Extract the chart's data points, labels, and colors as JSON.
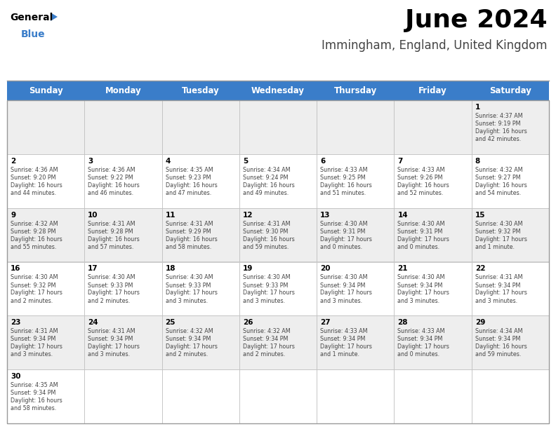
{
  "title": "June 2024",
  "subtitle": "Immingham, England, United Kingdom",
  "days_of_week": [
    "Sunday",
    "Monday",
    "Tuesday",
    "Wednesday",
    "Thursday",
    "Friday",
    "Saturday"
  ],
  "header_bg": "#3A7DC9",
  "header_text": "#FFFFFF",
  "bg_color": "#FFFFFF",
  "cell_border": "#BBBBBB",
  "day_number_color": "#000000",
  "text_color": "#444444",
  "title_color": "#000000",
  "subtitle_color": "#444444",
  "row_colors": [
    "#EEEEEE",
    "#FFFFFF"
  ],
  "calendar_data": [
    [
      {
        "day": null,
        "sunrise": null,
        "sunset": null,
        "daylight": null
      },
      {
        "day": null,
        "sunrise": null,
        "sunset": null,
        "daylight": null
      },
      {
        "day": null,
        "sunrise": null,
        "sunset": null,
        "daylight": null
      },
      {
        "day": null,
        "sunrise": null,
        "sunset": null,
        "daylight": null
      },
      {
        "day": null,
        "sunrise": null,
        "sunset": null,
        "daylight": null
      },
      {
        "day": null,
        "sunrise": null,
        "sunset": null,
        "daylight": null
      },
      {
        "day": 1,
        "sunrise": "4:37 AM",
        "sunset": "9:19 PM",
        "daylight": "16 hours\nand 42 minutes."
      }
    ],
    [
      {
        "day": 2,
        "sunrise": "4:36 AM",
        "sunset": "9:20 PM",
        "daylight": "16 hours\nand 44 minutes."
      },
      {
        "day": 3,
        "sunrise": "4:36 AM",
        "sunset": "9:22 PM",
        "daylight": "16 hours\nand 46 minutes."
      },
      {
        "day": 4,
        "sunrise": "4:35 AM",
        "sunset": "9:23 PM",
        "daylight": "16 hours\nand 47 minutes."
      },
      {
        "day": 5,
        "sunrise": "4:34 AM",
        "sunset": "9:24 PM",
        "daylight": "16 hours\nand 49 minutes."
      },
      {
        "day": 6,
        "sunrise": "4:33 AM",
        "sunset": "9:25 PM",
        "daylight": "16 hours\nand 51 minutes."
      },
      {
        "day": 7,
        "sunrise": "4:33 AM",
        "sunset": "9:26 PM",
        "daylight": "16 hours\nand 52 minutes."
      },
      {
        "day": 8,
        "sunrise": "4:32 AM",
        "sunset": "9:27 PM",
        "daylight": "16 hours\nand 54 minutes."
      }
    ],
    [
      {
        "day": 9,
        "sunrise": "4:32 AM",
        "sunset": "9:28 PM",
        "daylight": "16 hours\nand 55 minutes."
      },
      {
        "day": 10,
        "sunrise": "4:31 AM",
        "sunset": "9:28 PM",
        "daylight": "16 hours\nand 57 minutes."
      },
      {
        "day": 11,
        "sunrise": "4:31 AM",
        "sunset": "9:29 PM",
        "daylight": "16 hours\nand 58 minutes."
      },
      {
        "day": 12,
        "sunrise": "4:31 AM",
        "sunset": "9:30 PM",
        "daylight": "16 hours\nand 59 minutes."
      },
      {
        "day": 13,
        "sunrise": "4:30 AM",
        "sunset": "9:31 PM",
        "daylight": "17 hours\nand 0 minutes."
      },
      {
        "day": 14,
        "sunrise": "4:30 AM",
        "sunset": "9:31 PM",
        "daylight": "17 hours\nand 0 minutes."
      },
      {
        "day": 15,
        "sunrise": "4:30 AM",
        "sunset": "9:32 PM",
        "daylight": "17 hours\nand 1 minute."
      }
    ],
    [
      {
        "day": 16,
        "sunrise": "4:30 AM",
        "sunset": "9:32 PM",
        "daylight": "17 hours\nand 2 minutes."
      },
      {
        "day": 17,
        "sunrise": "4:30 AM",
        "sunset": "9:33 PM",
        "daylight": "17 hours\nand 2 minutes."
      },
      {
        "day": 18,
        "sunrise": "4:30 AM",
        "sunset": "9:33 PM",
        "daylight": "17 hours\nand 3 minutes."
      },
      {
        "day": 19,
        "sunrise": "4:30 AM",
        "sunset": "9:33 PM",
        "daylight": "17 hours\nand 3 minutes."
      },
      {
        "day": 20,
        "sunrise": "4:30 AM",
        "sunset": "9:34 PM",
        "daylight": "17 hours\nand 3 minutes."
      },
      {
        "day": 21,
        "sunrise": "4:30 AM",
        "sunset": "9:34 PM",
        "daylight": "17 hours\nand 3 minutes."
      },
      {
        "day": 22,
        "sunrise": "4:31 AM",
        "sunset": "9:34 PM",
        "daylight": "17 hours\nand 3 minutes."
      }
    ],
    [
      {
        "day": 23,
        "sunrise": "4:31 AM",
        "sunset": "9:34 PM",
        "daylight": "17 hours\nand 3 minutes."
      },
      {
        "day": 24,
        "sunrise": "4:31 AM",
        "sunset": "9:34 PM",
        "daylight": "17 hours\nand 3 minutes."
      },
      {
        "day": 25,
        "sunrise": "4:32 AM",
        "sunset": "9:34 PM",
        "daylight": "17 hours\nand 2 minutes."
      },
      {
        "day": 26,
        "sunrise": "4:32 AM",
        "sunset": "9:34 PM",
        "daylight": "17 hours\nand 2 minutes."
      },
      {
        "day": 27,
        "sunrise": "4:33 AM",
        "sunset": "9:34 PM",
        "daylight": "17 hours\nand 1 minute."
      },
      {
        "day": 28,
        "sunrise": "4:33 AM",
        "sunset": "9:34 PM",
        "daylight": "17 hours\nand 0 minutes."
      },
      {
        "day": 29,
        "sunrise": "4:34 AM",
        "sunset": "9:34 PM",
        "daylight": "16 hours\nand 59 minutes."
      }
    ],
    [
      {
        "day": 30,
        "sunrise": "4:35 AM",
        "sunset": "9:34 PM",
        "daylight": "16 hours\nand 58 minutes."
      },
      {
        "day": null,
        "sunrise": null,
        "sunset": null,
        "daylight": null
      },
      {
        "day": null,
        "sunrise": null,
        "sunset": null,
        "daylight": null
      },
      {
        "day": null,
        "sunrise": null,
        "sunset": null,
        "daylight": null
      },
      {
        "day": null,
        "sunrise": null,
        "sunset": null,
        "daylight": null
      },
      {
        "day": null,
        "sunrise": null,
        "sunset": null,
        "daylight": null
      },
      {
        "day": null,
        "sunrise": null,
        "sunset": null,
        "daylight": null
      }
    ]
  ]
}
